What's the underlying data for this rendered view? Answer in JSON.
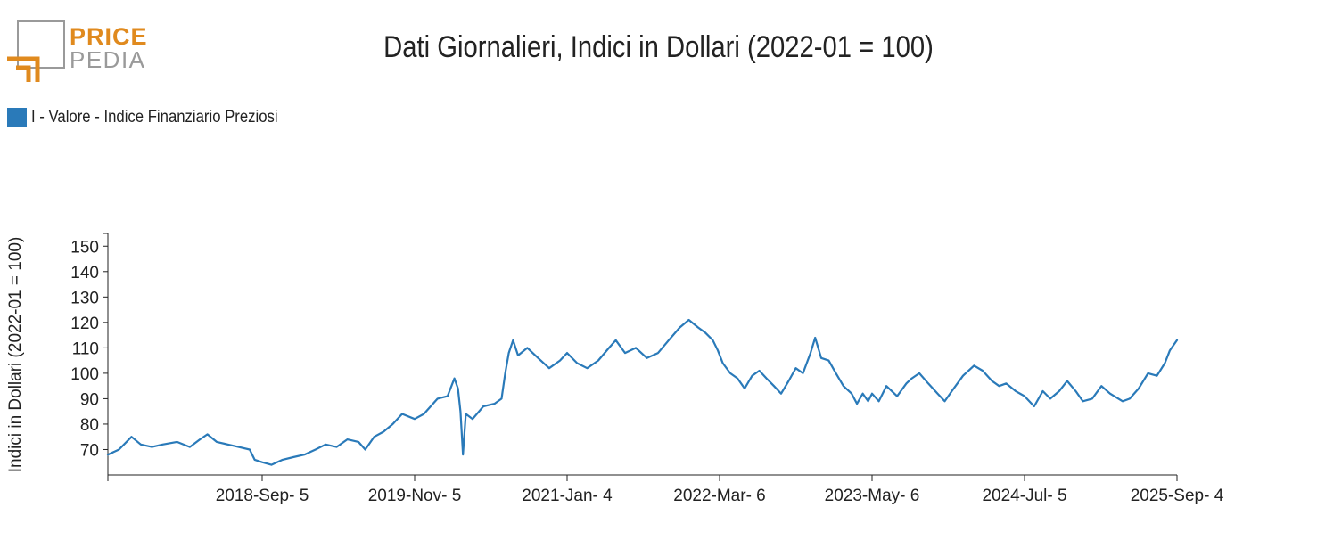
{
  "brand": {
    "line1": "PRICE",
    "line2": "PEDIA"
  },
  "colors": {
    "series": "#2a7ab9",
    "logo_orange": "#e08a1e",
    "logo_gray": "#9a9a9a",
    "axis": "#222222"
  },
  "chart_data": {
    "type": "line",
    "title": "Dati Giornalieri, Indici in Dollari (2022-01 = 100)",
    "ylabel": "Indici in Dollari (2022-01 = 100)",
    "xlabel": "",
    "legend_position": "top-left",
    "grid": false,
    "ylim": [
      60,
      155
    ],
    "yticks": [
      70,
      80,
      90,
      100,
      110,
      120,
      130,
      140,
      150
    ],
    "xlim": [
      "2017-07-01",
      "2025-09-04"
    ],
    "xticks": [
      "2018-Sep- 5",
      "2019-Nov- 5",
      "2021-Jan- 4",
      "2022-Mar- 6",
      "2023-May- 6",
      "2024-Jul- 5",
      "2025-Sep- 4"
    ],
    "xtick_dates": [
      "2018-09-05",
      "2019-11-05",
      "2021-01-04",
      "2022-03-06",
      "2023-05-06",
      "2024-07-05",
      "2025-09-04"
    ],
    "series": [
      {
        "name": "I - Valore - Indice Finanziario Preziosi",
        "points": [
          [
            "2017-07-01",
            68
          ],
          [
            "2017-08-01",
            70
          ],
          [
            "2017-09-05",
            75
          ],
          [
            "2017-10-01",
            72
          ],
          [
            "2017-11-01",
            71
          ],
          [
            "2017-12-01",
            72
          ],
          [
            "2018-01-10",
            73
          ],
          [
            "2018-02-15",
            71
          ],
          [
            "2018-03-15",
            74
          ],
          [
            "2018-04-05",
            76
          ],
          [
            "2018-05-01",
            73
          ],
          [
            "2018-06-01",
            72
          ],
          [
            "2018-07-01",
            71
          ],
          [
            "2018-08-01",
            70
          ],
          [
            "2018-08-15",
            66
          ],
          [
            "2018-09-05",
            65
          ],
          [
            "2018-10-01",
            64
          ],
          [
            "2018-11-01",
            66
          ],
          [
            "2018-12-01",
            67
          ],
          [
            "2019-01-01",
            68
          ],
          [
            "2019-02-01",
            70
          ],
          [
            "2019-03-01",
            72
          ],
          [
            "2019-04-01",
            71
          ],
          [
            "2019-05-01",
            74
          ],
          [
            "2019-06-01",
            73
          ],
          [
            "2019-06-20",
            70
          ],
          [
            "2019-07-15",
            75
          ],
          [
            "2019-08-10",
            77
          ],
          [
            "2019-09-05",
            80
          ],
          [
            "2019-10-01",
            84
          ],
          [
            "2019-11-05",
            82
          ],
          [
            "2019-12-01",
            84
          ],
          [
            "2020-01-08",
            90
          ],
          [
            "2020-02-05",
            91
          ],
          [
            "2020-02-24",
            98
          ],
          [
            "2020-03-05",
            94
          ],
          [
            "2020-03-12",
            85
          ],
          [
            "2020-03-19",
            68
          ],
          [
            "2020-03-27",
            84
          ],
          [
            "2020-04-15",
            82
          ],
          [
            "2020-05-15",
            87
          ],
          [
            "2020-06-15",
            88
          ],
          [
            "2020-07-05",
            90
          ],
          [
            "2020-07-15",
            100
          ],
          [
            "2020-07-25",
            108
          ],
          [
            "2020-08-06",
            113
          ],
          [
            "2020-08-20",
            107
          ],
          [
            "2020-09-15",
            110
          ],
          [
            "2020-10-15",
            106
          ],
          [
            "2020-11-15",
            102
          ],
          [
            "2020-12-15",
            105
          ],
          [
            "2021-01-04",
            108
          ],
          [
            "2021-02-01",
            104
          ],
          [
            "2021-03-01",
            102
          ],
          [
            "2021-04-01",
            105
          ],
          [
            "2021-05-01",
            110
          ],
          [
            "2021-05-20",
            113
          ],
          [
            "2021-06-15",
            108
          ],
          [
            "2021-07-15",
            110
          ],
          [
            "2021-08-15",
            106
          ],
          [
            "2021-09-15",
            108
          ],
          [
            "2021-10-15",
            113
          ],
          [
            "2021-11-15",
            118
          ],
          [
            "2021-12-10",
            121
          ],
          [
            "2022-01-05",
            118
          ],
          [
            "2022-01-25",
            116
          ],
          [
            "2022-02-15",
            113
          ],
          [
            "2022-03-01",
            109
          ],
          [
            "2022-03-15",
            104
          ],
          [
            "2022-04-05",
            100
          ],
          [
            "2022-04-25",
            98
          ],
          [
            "2022-05-15",
            94
          ],
          [
            "2022-06-05",
            99
          ],
          [
            "2022-06-25",
            101
          ],
          [
            "2022-07-15",
            98
          ],
          [
            "2022-08-05",
            95
          ],
          [
            "2022-08-25",
            92
          ],
          [
            "2022-09-15",
            97
          ],
          [
            "2022-10-05",
            102
          ],
          [
            "2022-10-25",
            100
          ],
          [
            "2022-11-15",
            108
          ],
          [
            "2022-11-28",
            114
          ],
          [
            "2022-12-15",
            106
          ],
          [
            "2023-01-05",
            105
          ],
          [
            "2023-01-25",
            100
          ],
          [
            "2023-02-15",
            95
          ],
          [
            "2023-03-10",
            92
          ],
          [
            "2023-03-25",
            88
          ],
          [
            "2023-04-10",
            92
          ],
          [
            "2023-04-25",
            89
          ],
          [
            "2023-05-06",
            92
          ],
          [
            "2023-05-25",
            89
          ],
          [
            "2023-06-15",
            95
          ],
          [
            "2023-07-15",
            91
          ],
          [
            "2023-08-10",
            96
          ],
          [
            "2023-08-25",
            98
          ],
          [
            "2023-09-15",
            100
          ],
          [
            "2023-10-10",
            96
          ],
          [
            "2023-11-05",
            92
          ],
          [
            "2023-11-25",
            89
          ],
          [
            "2023-12-15",
            93
          ],
          [
            "2024-01-15",
            99
          ],
          [
            "2024-02-15",
            103
          ],
          [
            "2024-03-10",
            101
          ],
          [
            "2024-04-05",
            97
          ],
          [
            "2024-04-25",
            95
          ],
          [
            "2024-05-15",
            96
          ],
          [
            "2024-06-10",
            93
          ],
          [
            "2024-07-05",
            91
          ],
          [
            "2024-08-01",
            87
          ],
          [
            "2024-08-25",
            93
          ],
          [
            "2024-09-15",
            90
          ],
          [
            "2024-10-10",
            93
          ],
          [
            "2024-11-01",
            97
          ],
          [
            "2024-11-25",
            93
          ],
          [
            "2024-12-15",
            89
          ],
          [
            "2025-01-10",
            90
          ],
          [
            "2025-02-05",
            95
          ],
          [
            "2025-03-01",
            92
          ],
          [
            "2025-04-05",
            89
          ],
          [
            "2025-04-25",
            90
          ],
          [
            "2025-05-20",
            94
          ],
          [
            "2025-06-15",
            100
          ],
          [
            "2025-07-10",
            99
          ],
          [
            "2025-08-01",
            104
          ],
          [
            "2025-08-15",
            109
          ],
          [
            "2025-08-25",
            111
          ],
          [
            "2025-09-04",
            113
          ]
        ]
      }
    ]
  }
}
